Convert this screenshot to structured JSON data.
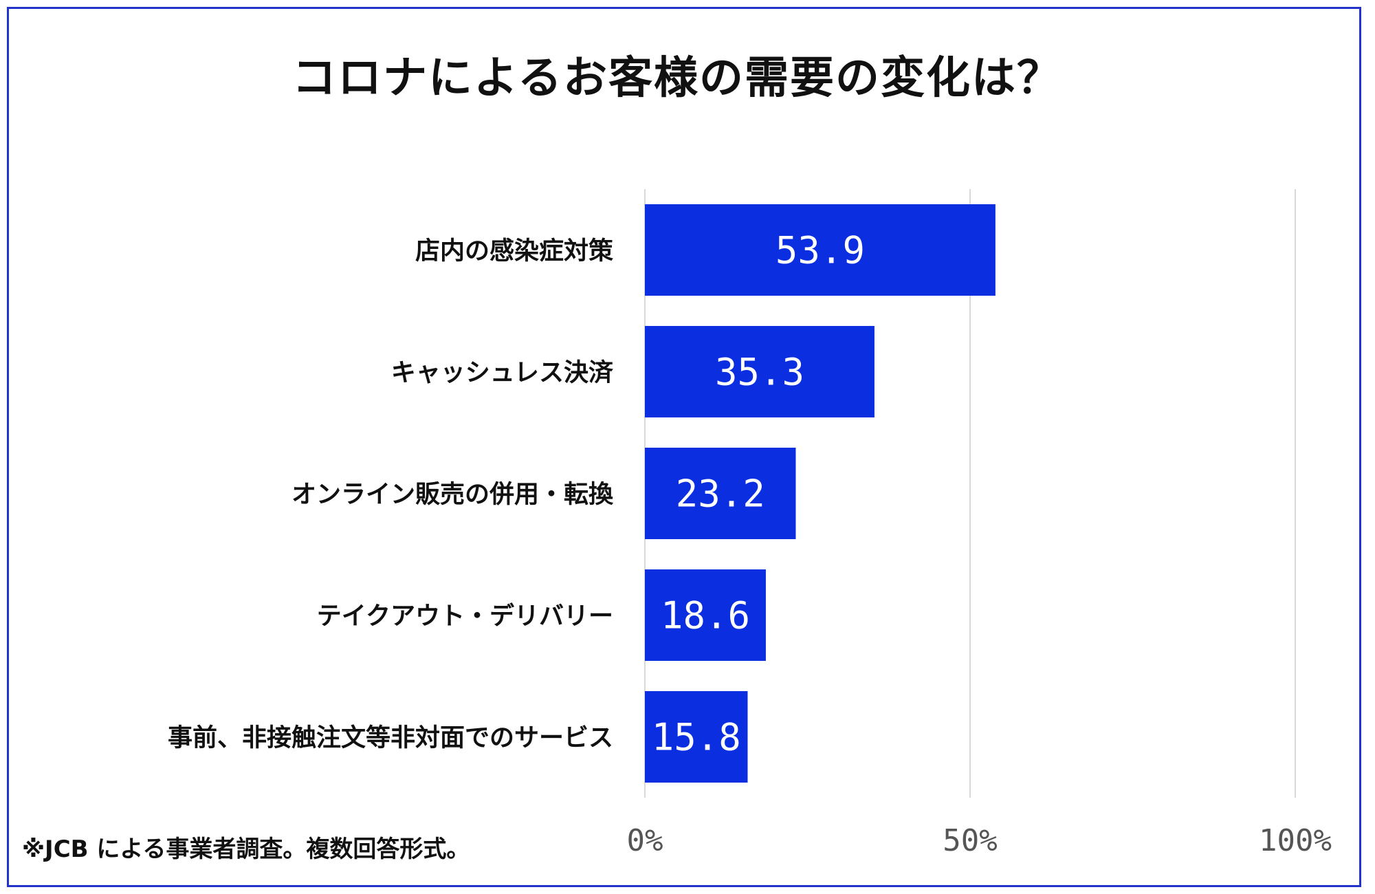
{
  "chart_data": {
    "type": "bar",
    "orientation": "horizontal",
    "title": "コロナによるお客様の需要の変化は？",
    "categories": [
      "店内の感染症対策",
      "キャッシュレス決済",
      "オンライン販売の併用・転換",
      "テイクアウト・デリバリー",
      "事前、非接触注文等非対面でのサービス"
    ],
    "values": [
      53.9,
      35.3,
      23.2,
      18.6,
      15.8
    ],
    "value_labels": [
      "53.9",
      "35.3",
      "23.2",
      "18.6",
      "15.8"
    ],
    "xlim": [
      0,
      100
    ],
    "x_ticks": [
      0,
      50,
      100
    ],
    "x_tick_labels": [
      "0%",
      "50%",
      "100%"
    ],
    "grid": true,
    "bar_color": "#0b2ee0",
    "footnote": "※JCB による事業者調査。複数回答形式。"
  }
}
